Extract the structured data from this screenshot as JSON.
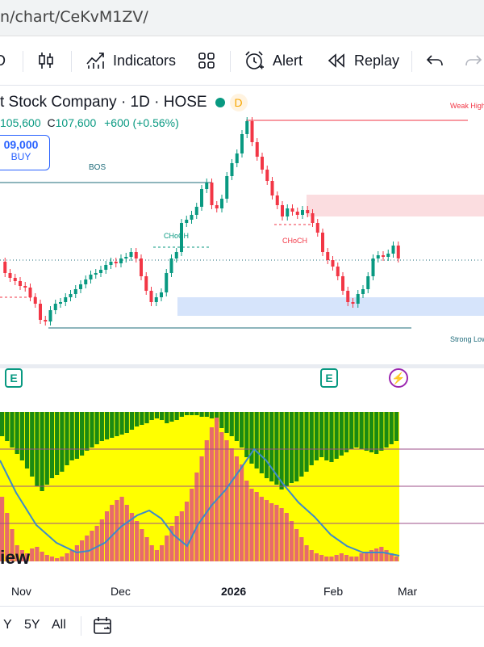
{
  "browser": {
    "url": "n/chart/CeKvM1ZV/"
  },
  "toolbar": {
    "indicators_label": "Indicators",
    "alert_label": "Alert",
    "replay_label": "Replay",
    "interval_partial": "D"
  },
  "legend": {
    "title": "t Stock Company · 1D · HOSE",
    "d_badge": "D",
    "low_value": "105,600",
    "close_label": "C",
    "close_value": "107,600",
    "change": "+600 (+0.56%)"
  },
  "buy_box": {
    "price": "09,000",
    "label": "BUY"
  },
  "annotations": {
    "bos": "BOS",
    "choch_left": "CHoCH",
    "choch_right": "CHoCH",
    "weak_high": "Weak High",
    "strong_low": "Strong Low"
  },
  "events": {
    "earnings": "E"
  },
  "watermark": "iew",
  "time_axis": [
    "Nov",
    "Dec",
    "2026",
    "Feb",
    "Mar"
  ],
  "bottom_bar": [
    "Y",
    "5Y",
    "All"
  ],
  "colors": {
    "up": "#089981",
    "down": "#f23645",
    "accent": "#2962ff",
    "zone_red": "#fbdde0",
    "zone_blue": "#d6e4fb",
    "indicator_yellow": "#ffff00",
    "indicator_green": "#1b8a12",
    "indicator_red": "#e76b6b",
    "indicator_line": "#3d8bc9"
  },
  "chart_data": {
    "type": "candlestick",
    "interval": "1D",
    "last_close": 107600,
    "last_change": 600,
    "last_change_pct": 0.56
  }
}
